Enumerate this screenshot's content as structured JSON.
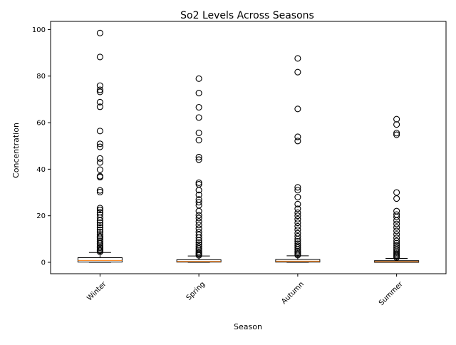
{
  "chart_data": {
    "type": "box",
    "title": "So2 Levels Across Seasons",
    "xlabel": "Season",
    "ylabel": "Concentration",
    "categories": [
      "Winter",
      "Spring",
      "Autumn",
      "Summer"
    ],
    "ylim": [
      -4.9,
      103.5
    ],
    "yticks": [
      0,
      20,
      40,
      60,
      80,
      100
    ],
    "grid": false,
    "boxes": [
      {
        "name": "Winter",
        "q1": 0.1,
        "median": 0.8,
        "q3": 2.0,
        "whisker_low": 0.0,
        "whisker_high": 4.2,
        "outliers": [
          4.5,
          5,
          5.6,
          6.2,
          6.8,
          7.5,
          8.2,
          9,
          9.8,
          10.5,
          11.2,
          12,
          13,
          14,
          15,
          16,
          17,
          18,
          19.2,
          20.5,
          21.5,
          22.5,
          23.3,
          30.2,
          30.9,
          36.6,
          37,
          39.8,
          42.9,
          44.6,
          49.6,
          50.9,
          56.4,
          66.8,
          68.8,
          73.2,
          74.1,
          75.9,
          88.2,
          98.5
        ]
      },
      {
        "name": "Spring",
        "q1": 0.1,
        "median": 0.4,
        "q3": 1.1,
        "whisker_low": 0.0,
        "whisker_high": 2.7,
        "outliers": [
          3,
          3.5,
          4,
          4.6,
          5.3,
          6,
          6.8,
          7.6,
          8.5,
          9.5,
          10.6,
          11.8,
          13,
          14.5,
          16,
          17.5,
          19,
          20.2,
          22,
          24.5,
          25.8,
          27,
          29,
          31,
          33.5,
          34.2,
          44.1,
          45.2,
          52.5,
          55.6,
          62.2,
          66.6,
          72.7,
          78.9
        ]
      },
      {
        "name": "Autumn",
        "q1": 0.1,
        "median": 0.5,
        "q3": 1.2,
        "whisker_low": 0.0,
        "whisker_high": 2.8,
        "outliers": [
          3.1,
          3.6,
          4.2,
          4.8,
          5.5,
          6.3,
          7.1,
          8,
          9,
          10,
          11.2,
          12.5,
          14,
          15.5,
          17,
          18.5,
          20,
          21.3,
          23,
          25,
          28,
          31,
          32.2,
          52.1,
          53.9,
          65.9,
          81.7,
          87.6
        ]
      },
      {
        "name": "Summer",
        "q1": 0.0,
        "median": 0.3,
        "q3": 0.7,
        "whisker_low": 0.0,
        "whisker_high": 1.7,
        "outliers": [
          2,
          2.5,
          3,
          3.6,
          4.2,
          4.9,
          5.6,
          6.4,
          7.3,
          8.2,
          9.2,
          10.5,
          12,
          13.5,
          15,
          16.5,
          18,
          19.5,
          20.5,
          22,
          27.4,
          30,
          54.8,
          55.5,
          59.2,
          61.5
        ]
      }
    ]
  }
}
